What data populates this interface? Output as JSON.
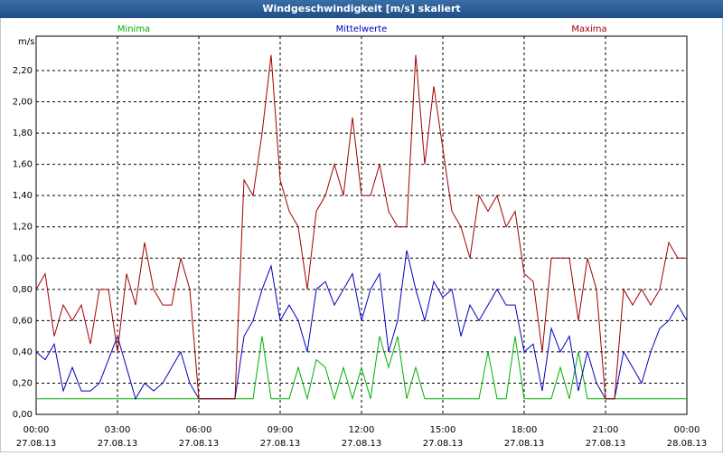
{
  "window_title": "Windgeschwindigkeit [m/s] skaliert",
  "chart_data": {
    "type": "line",
    "y_unit": "m/s",
    "x": [
      0,
      20,
      40,
      60,
      80,
      100,
      120,
      140,
      160,
      180,
      200,
      220,
      240,
      260,
      280,
      300,
      320,
      340,
      360,
      380,
      400,
      420,
      440,
      460,
      480,
      500,
      520,
      540,
      560,
      580,
      600,
      620,
      640,
      660,
      680,
      700,
      720,
      740,
      760,
      780,
      800,
      820,
      840,
      860,
      880,
      900,
      920,
      940,
      960,
      980,
      1000,
      1020,
      1040,
      1060,
      1080,
      1100,
      1120,
      1140,
      1160,
      1180,
      1200,
      1220,
      1240,
      1260,
      1280,
      1300,
      1320,
      1340,
      1360,
      1380,
      1400,
      1420,
      1440
    ],
    "series": [
      {
        "name": "Minima",
        "color": "#00b000",
        "values": [
          0.1,
          0.1,
          0.1,
          0.1,
          0.1,
          0.1,
          0.1,
          0.1,
          0.1,
          0.1,
          0.1,
          0.1,
          0.1,
          0.1,
          0.1,
          0.1,
          0.1,
          0.1,
          0.1,
          0.1,
          0.1,
          0.1,
          0.1,
          0.1,
          0.1,
          0.5,
          0.1,
          0.1,
          0.1,
          0.3,
          0.1,
          0.35,
          0.3,
          0.1,
          0.3,
          0.1,
          0.3,
          0.1,
          0.5,
          0.3,
          0.5,
          0.1,
          0.3,
          0.1,
          0.1,
          0.1,
          0.1,
          0.1,
          0.1,
          0.1,
          0.4,
          0.1,
          0.1,
          0.5,
          0.1,
          0.1,
          0.1,
          0.1,
          0.3,
          0.1,
          0.4,
          0.1,
          0.1,
          0.1,
          0.1,
          0.1,
          0.1,
          0.1,
          0.1,
          0.1,
          0.1,
          0.1,
          0.1
        ]
      },
      {
        "name": "Mittelwerte",
        "color": "#0000c0",
        "values": [
          0.4,
          0.35,
          0.45,
          0.15,
          0.3,
          0.15,
          0.15,
          0.2,
          0.35,
          0.5,
          0.3,
          0.1,
          0.2,
          0.15,
          0.2,
          0.3,
          0.4,
          0.2,
          0.1,
          0.1,
          0.1,
          0.1,
          0.1,
          0.5,
          0.6,
          0.8,
          0.95,
          0.6,
          0.7,
          0.6,
          0.4,
          0.8,
          0.85,
          0.7,
          0.8,
          0.9,
          0.6,
          0.8,
          0.9,
          0.4,
          0.6,
          1.05,
          0.8,
          0.6,
          0.85,
          0.75,
          0.8,
          0.5,
          0.7,
          0.6,
          0.7,
          0.8,
          0.7,
          0.7,
          0.4,
          0.45,
          0.15,
          0.55,
          0.4,
          0.5,
          0.15,
          0.4,
          0.2,
          0.1,
          0.1,
          0.4,
          0.3,
          0.2,
          0.4,
          0.55,
          0.6,
          0.7,
          0.6
        ]
      },
      {
        "name": "Maxima",
        "color": "#a00000",
        "values": [
          0.8,
          0.9,
          0.5,
          0.7,
          0.6,
          0.7,
          0.45,
          0.8,
          0.8,
          0.4,
          0.9,
          0.7,
          1.1,
          0.8,
          0.7,
          0.7,
          1.0,
          0.8,
          0.1,
          0.1,
          0.1,
          0.1,
          0.1,
          1.5,
          1.4,
          1.8,
          2.3,
          1.5,
          1.3,
          1.2,
          0.8,
          1.3,
          1.4,
          1.6,
          1.4,
          1.9,
          1.4,
          1.4,
          1.6,
          1.3,
          1.2,
          1.2,
          2.3,
          1.6,
          2.1,
          1.7,
          1.3,
          1.2,
          1.0,
          1.4,
          1.3,
          1.4,
          1.2,
          1.3,
          0.9,
          0.85,
          0.4,
          1.0,
          1.0,
          1.0,
          0.6,
          1.0,
          0.8,
          0.1,
          0.1,
          0.8,
          0.7,
          0.8,
          0.7,
          0.8,
          1.1,
          1.0,
          1.0
        ]
      }
    ],
    "xlim": [
      0,
      1440
    ],
    "xticks": [
      {
        "value": 0,
        "label": "00:00"
      },
      {
        "value": 180,
        "label": "03:00"
      },
      {
        "value": 360,
        "label": "06:00"
      },
      {
        "value": 540,
        "label": "09:00"
      },
      {
        "value": 720,
        "label": "12:00"
      },
      {
        "value": 900,
        "label": "15:00"
      },
      {
        "value": 1080,
        "label": "18:00"
      },
      {
        "value": 1260,
        "label": "21:00"
      },
      {
        "value": 1440,
        "label": "00:00"
      }
    ],
    "xtick_dates": [
      "27.08.13",
      "27.08.13",
      "27.08.13",
      "27.08.13",
      "27.08.13",
      "27.08.13",
      "27.08.13",
      "27.08.13",
      "28.08.13"
    ],
    "ylim": [
      0,
      2.42
    ],
    "yticks": [
      {
        "value": 0,
        "label": "0,00"
      },
      {
        "value": 0.2,
        "label": "0,20"
      },
      {
        "value": 0.4,
        "label": "0,40"
      },
      {
        "value": 0.6,
        "label": "0,60"
      },
      {
        "value": 0.8,
        "label": "0,80"
      },
      {
        "value": 1.0,
        "label": "1,00"
      },
      {
        "value": 1.2,
        "label": "1,20"
      },
      {
        "value": 1.4,
        "label": "1,40"
      },
      {
        "value": 1.6,
        "label": "1,60"
      },
      {
        "value": 1.8,
        "label": "1,80"
      },
      {
        "value": 2.0,
        "label": "2,00"
      },
      {
        "value": 2.2,
        "label": "2,20"
      }
    ],
    "grid": true
  }
}
